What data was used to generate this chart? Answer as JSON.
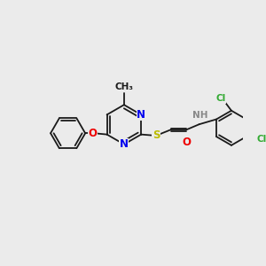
{
  "bg_color": "#ebebeb",
  "bond_color": "#1a1a1a",
  "bond_width": 1.3,
  "atom_colors": {
    "N": "#0000ee",
    "O": "#ee0000",
    "S": "#bbbb00",
    "Cl": "#33aa33",
    "C": "#1a1a1a",
    "H": "#888888"
  },
  "font_size": 8.5,
  "font_size_sub": 7.5,
  "figsize": [
    3.0,
    3.0
  ],
  "dpi": 100
}
